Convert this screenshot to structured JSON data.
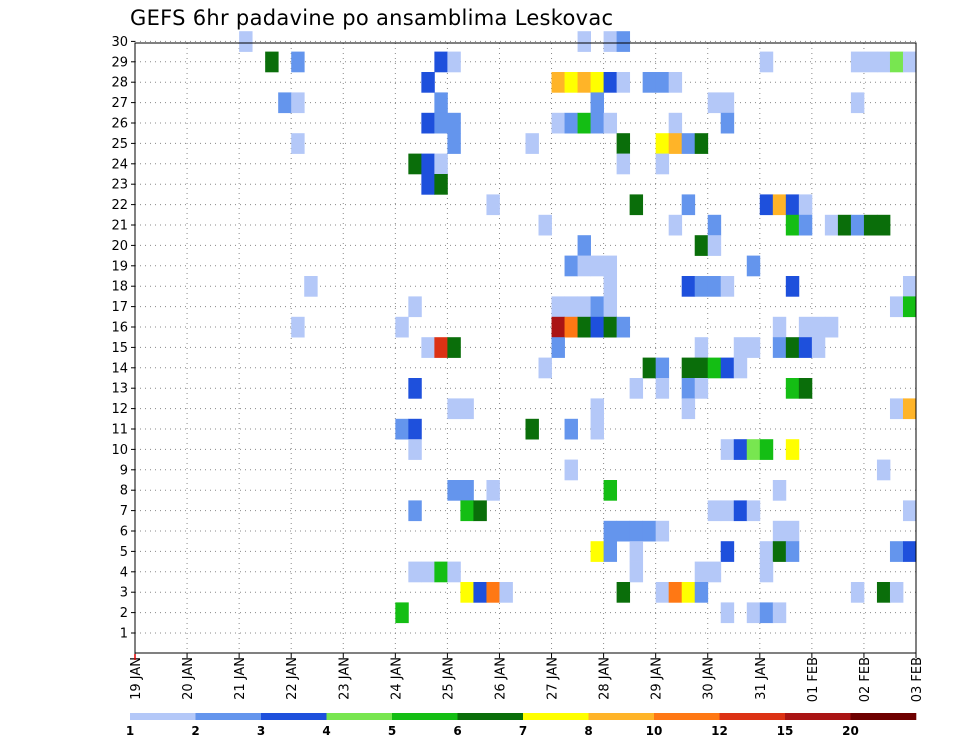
{
  "chart_data": {
    "type": "heatmap",
    "title": "GEFS 6hr padavine po ansamblima Leskovac",
    "x_ticks": [
      "19 JAN",
      "20 JAN",
      "21 JAN",
      "22 JAN",
      "23 JAN",
      "24 JAN",
      "25 JAN",
      "26 JAN",
      "27 JAN",
      "28 JAN",
      "29 JAN",
      "30 JAN",
      "31 JAN",
      "01 FEB",
      "02 FEB",
      "03 FEB"
    ],
    "y_ticks": [
      "1",
      "2",
      "3",
      "4",
      "5",
      "6",
      "7",
      "8",
      "9",
      "10",
      "11",
      "12",
      "13",
      "14",
      "15",
      "16",
      "17",
      "18",
      "19",
      "20",
      "21",
      "22",
      "23",
      "24",
      "25",
      "26",
      "27",
      "28",
      "29",
      "30"
    ],
    "steps_per_day": 4,
    "grid": "dotted",
    "colorbar": {
      "labels": [
        "1",
        "2",
        "3",
        "4",
        "5",
        "6",
        "7",
        "8",
        "10",
        "12",
        "15",
        "20"
      ],
      "colors": [
        "#b4c8f8",
        "#6495ed",
        "#1e50dc",
        "#78e650",
        "#14be14",
        "#0a6e0a",
        "#ffff00",
        "#ffb428",
        "#ff7814",
        "#dc3214",
        "#aa1414",
        "#6e0000"
      ]
    },
    "cells": [
      [
        30,
        14,
        1
      ],
      [
        30,
        14.5,
        6
      ],
      [
        30,
        21,
        1
      ],
      [
        30,
        27.5,
        1
      ],
      [
        30,
        28,
        1
      ],
      [
        30,
        28.25,
        2
      ],
      [
        29,
        22,
        2
      ],
      [
        29,
        24.75,
        3
      ],
      [
        29,
        25,
        1
      ],
      [
        29,
        21.5,
        6
      ],
      [
        29,
        31,
        1
      ],
      [
        29,
        32.75,
        1
      ],
      [
        29,
        33,
        1
      ],
      [
        29,
        33.25,
        1
      ],
      [
        29,
        33.5,
        4
      ],
      [
        29,
        33.75,
        1
      ],
      [
        28,
        24.5,
        3
      ],
      [
        28,
        27,
        8
      ],
      [
        28,
        27.25,
        7
      ],
      [
        28,
        27.5,
        8
      ],
      [
        28,
        27.75,
        7
      ],
      [
        28,
        28,
        3
      ],
      [
        28,
        28.25,
        1
      ],
      [
        28,
        28.75,
        2
      ],
      [
        28,
        29,
        2
      ],
      [
        28,
        29.25,
        1
      ],
      [
        27,
        21.75,
        2
      ],
      [
        27,
        22,
        1
      ],
      [
        27,
        24.75,
        2
      ],
      [
        27,
        27.75,
        2
      ],
      [
        27,
        30,
        1
      ],
      [
        27,
        30.25,
        1
      ],
      [
        27,
        32.75,
        1
      ],
      [
        26,
        24.5,
        3
      ],
      [
        26,
        24.75,
        2
      ],
      [
        26,
        25,
        2
      ],
      [
        26,
        27,
        1
      ],
      [
        26,
        27.25,
        2
      ],
      [
        26,
        27.5,
        5
      ],
      [
        26,
        27.75,
        2
      ],
      [
        26,
        28,
        1
      ],
      [
        26,
        29.25,
        1
      ],
      [
        26,
        30.25,
        2
      ],
      [
        25,
        22,
        1
      ],
      [
        25,
        25,
        2
      ],
      [
        25,
        26.5,
        1
      ],
      [
        25,
        28.25,
        6
      ],
      [
        25,
        29,
        7
      ],
      [
        25,
        29.25,
        8
      ],
      [
        25,
        29.5,
        2
      ],
      [
        25,
        29.75,
        6
      ],
      [
        24,
        24.25,
        6
      ],
      [
        24,
        24.5,
        3
      ],
      [
        24,
        24.75,
        1
      ],
      [
        24,
        28.25,
        1
      ],
      [
        24,
        29,
        1
      ],
      [
        23,
        24.5,
        3
      ],
      [
        23,
        24.75,
        6
      ],
      [
        22,
        25.75,
        1
      ],
      [
        22,
        28.5,
        6
      ],
      [
        22,
        29.5,
        2
      ],
      [
        22,
        31,
        3
      ],
      [
        22,
        31.25,
        8
      ],
      [
        22,
        31.5,
        3
      ],
      [
        22,
        31.75,
        1
      ],
      [
        21,
        26.75,
        1
      ],
      [
        21,
        29.25,
        1
      ],
      [
        21,
        30,
        2
      ],
      [
        21,
        31.5,
        5
      ],
      [
        21,
        31.75,
        2
      ],
      [
        21,
        32.25,
        1
      ],
      [
        21,
        32.5,
        6
      ],
      [
        21,
        32.75,
        2
      ],
      [
        21,
        33,
        6
      ],
      [
        21,
        33.25,
        6
      ],
      [
        20,
        27.5,
        2
      ],
      [
        20,
        29.75,
        6
      ],
      [
        20,
        30,
        1
      ],
      [
        19,
        27.25,
        2
      ],
      [
        19,
        27.5,
        1
      ],
      [
        19,
        27.75,
        1
      ],
      [
        19,
        28,
        1
      ],
      [
        19,
        30.75,
        2
      ],
      [
        18,
        22.25,
        1
      ],
      [
        18,
        28,
        1
      ],
      [
        18,
        29.5,
        3
      ],
      [
        18,
        29.75,
        2
      ],
      [
        18,
        30,
        2
      ],
      [
        18,
        30.25,
        1
      ],
      [
        18,
        31.5,
        3
      ],
      [
        18,
        33.75,
        1
      ],
      [
        17,
        24.25,
        1
      ],
      [
        17,
        27,
        1
      ],
      [
        17,
        27.25,
        1
      ],
      [
        17,
        27.5,
        1
      ],
      [
        17,
        27.75,
        2
      ],
      [
        17,
        28,
        1
      ],
      [
        17,
        33.5,
        1
      ],
      [
        17,
        33.75,
        5
      ],
      [
        16,
        22,
        1
      ],
      [
        16,
        24,
        1
      ],
      [
        16,
        27,
        11
      ],
      [
        16,
        27.25,
        9
      ],
      [
        16,
        27.5,
        6
      ],
      [
        16,
        27.75,
        3
      ],
      [
        16,
        28,
        6
      ],
      [
        16,
        28.25,
        2
      ],
      [
        16,
        31.25,
        1
      ],
      [
        16,
        31.75,
        1
      ],
      [
        16,
        32,
        1
      ],
      [
        16,
        32.25,
        1
      ],
      [
        15,
        24.5,
        1
      ],
      [
        15,
        24.75,
        10
      ],
      [
        15,
        25,
        6
      ],
      [
        15,
        27,
        2
      ],
      [
        15,
        29.75,
        1
      ],
      [
        15,
        30.5,
        1
      ],
      [
        15,
        30.75,
        1
      ],
      [
        15,
        31.25,
        2
      ],
      [
        15,
        31.5,
        6
      ],
      [
        15,
        31.75,
        3
      ],
      [
        15,
        32,
        1
      ],
      [
        14,
        26.75,
        1
      ],
      [
        14,
        28.75,
        6
      ],
      [
        14,
        29,
        2
      ],
      [
        14,
        29.5,
        6
      ],
      [
        14,
        29.75,
        6
      ],
      [
        14,
        30,
        5
      ],
      [
        14,
        30.25,
        3
      ],
      [
        14,
        30.5,
        1
      ],
      [
        13,
        24.25,
        3
      ],
      [
        13,
        28.5,
        1
      ],
      [
        13,
        29,
        1
      ],
      [
        13,
        29.5,
        2
      ],
      [
        13,
        29.75,
        1
      ],
      [
        13,
        31.5,
        5
      ],
      [
        13,
        31.75,
        6
      ],
      [
        12,
        25,
        1
      ],
      [
        12,
        25.25,
        1
      ],
      [
        12,
        27.75,
        1
      ],
      [
        12,
        29.5,
        1
      ],
      [
        12,
        33.5,
        1
      ],
      [
        12,
        33.75,
        8
      ],
      [
        11,
        24,
        2
      ],
      [
        11,
        24.25,
        3
      ],
      [
        11,
        26.5,
        6
      ],
      [
        11,
        27.25,
        2
      ],
      [
        11,
        27.75,
        1
      ],
      [
        10,
        24.25,
        1
      ],
      [
        10,
        30.25,
        1
      ],
      [
        10,
        30.5,
        3
      ],
      [
        10,
        30.75,
        4
      ],
      [
        10,
        31,
        5
      ],
      [
        10,
        31.5,
        7
      ],
      [
        9,
        27.25,
        1
      ],
      [
        9,
        33.25,
        1
      ],
      [
        8,
        25,
        2
      ],
      [
        8,
        25.25,
        2
      ],
      [
        8,
        25.75,
        1
      ],
      [
        8,
        28,
        5
      ],
      [
        8,
        31.25,
        1
      ],
      [
        7,
        24.25,
        2
      ],
      [
        7,
        25.25,
        5
      ],
      [
        7,
        25.5,
        6
      ],
      [
        7,
        30,
        1
      ],
      [
        7,
        30.25,
        1
      ],
      [
        7,
        30.5,
        3
      ],
      [
        7,
        30.75,
        1
      ],
      [
        7,
        33.75,
        1
      ],
      [
        6,
        28,
        2
      ],
      [
        6,
        28.25,
        2
      ],
      [
        6,
        28.5,
        2
      ],
      [
        6,
        28.75,
        2
      ],
      [
        6,
        29,
        1
      ],
      [
        6,
        31.25,
        1
      ],
      [
        6,
        31.5,
        1
      ],
      [
        5,
        27.75,
        7
      ],
      [
        5,
        28,
        2
      ],
      [
        5,
        28.5,
        1
      ],
      [
        5,
        30.25,
        3
      ],
      [
        5,
        31,
        1
      ],
      [
        5,
        31.25,
        6
      ],
      [
        5,
        31.5,
        2
      ],
      [
        5,
        33.5,
        2
      ],
      [
        5,
        33.75,
        3
      ],
      [
        4,
        24.25,
        1
      ],
      [
        4,
        24.5,
        1
      ],
      [
        4,
        24.75,
        5
      ],
      [
        4,
        25,
        1
      ],
      [
        4,
        28.5,
        1
      ],
      [
        4,
        29.75,
        1
      ],
      [
        4,
        30,
        1
      ],
      [
        4,
        31,
        1
      ],
      [
        3,
        25.25,
        7
      ],
      [
        3,
        25.5,
        3
      ],
      [
        3,
        25.75,
        9
      ],
      [
        3,
        26,
        1
      ],
      [
        3,
        28.25,
        6
      ],
      [
        3,
        29,
        1
      ],
      [
        3,
        29.25,
        9
      ],
      [
        3,
        29.5,
        7
      ],
      [
        3,
        29.75,
        2
      ],
      [
        3,
        32.75,
        1
      ],
      [
        3,
        33.25,
        6
      ],
      [
        3,
        33.5,
        1
      ],
      [
        2,
        24,
        5
      ],
      [
        2,
        30.25,
        1
      ],
      [
        2,
        30.75,
        1
      ],
      [
        2,
        31,
        2
      ],
      [
        2,
        31.25,
        1
      ]
    ]
  }
}
